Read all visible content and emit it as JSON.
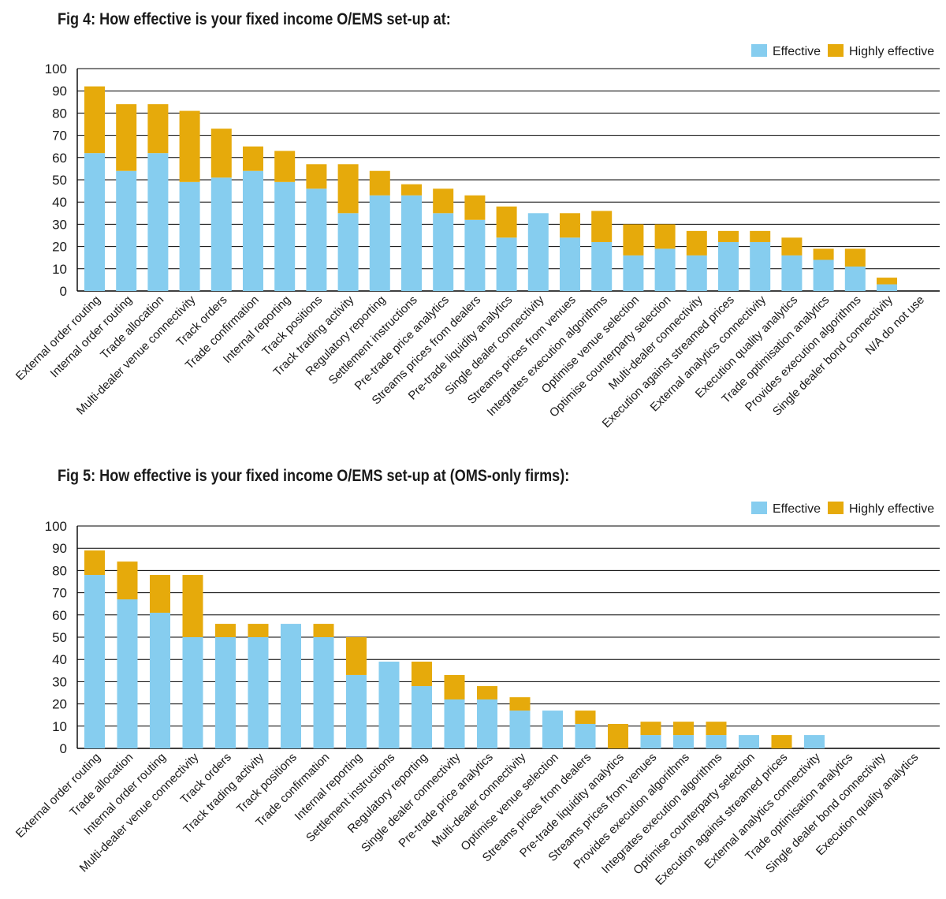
{
  "colors": {
    "effective": "#86cdef",
    "highly_effective": "#e6aa0b",
    "grid": "#000000",
    "axis": "#000000"
  },
  "chart_data": [
    {
      "type": "bar",
      "stacked": true,
      "title": "Fig 4: How effective is your fixed income O/EMS set-up at:",
      "legend": {
        "position": "top-right",
        "entries": [
          "Effective",
          "Highly effective"
        ]
      },
      "ylim": [
        0,
        100
      ],
      "yticks": [
        0,
        10,
        20,
        30,
        40,
        50,
        60,
        70,
        80,
        90,
        100
      ],
      "grid": true,
      "categories": [
        "External order routing",
        "Internal order routing",
        "Trade allocation",
        "Multi-dealer venue connectivity",
        "Track orders",
        "Trade confirmation",
        "Internal reporting",
        "Track positions",
        "Track trading activity",
        "Regulatory reporting",
        "Settlement instructions",
        "Pre-trade price analytics",
        "Streams prices from dealers",
        "Pre-trade liquidity analytics",
        "Single dealer connectivity",
        "Streams prices from venues",
        "Integrates execution algorithms",
        "Optimise venue selection",
        "Optimise counterparty selection",
        "Multi-dealer connectivity",
        "Execution against streamed prices",
        "External analytics connectivity",
        "Execution quality analytics",
        "Trade optimisation analytics",
        "Provides execution algorithms",
        "Single dealer bond connectivity",
        "N/A do not use"
      ],
      "series": [
        {
          "name": "Effective",
          "values": [
            62,
            54,
            62,
            49,
            51,
            54,
            49,
            46,
            35,
            43,
            43,
            35,
            32,
            24,
            35,
            24,
            22,
            16,
            19,
            16,
            22,
            22,
            16,
            14,
            11,
            3,
            0
          ]
        },
        {
          "name": "Highly effective",
          "values": [
            30,
            30,
            22,
            32,
            22,
            11,
            14,
            11,
            22,
            11,
            5,
            11,
            11,
            14,
            0,
            11,
            14,
            14,
            11,
            11,
            5,
            5,
            8,
            5,
            8,
            3,
            0
          ]
        }
      ]
    },
    {
      "type": "bar",
      "stacked": true,
      "title": "Fig 5: How effective is your fixed income O/EMS set-up at (OMS-only firms):",
      "legend": {
        "position": "top-right",
        "entries": [
          "Effective",
          "Highly effective"
        ]
      },
      "ylim": [
        0,
        100
      ],
      "yticks": [
        0,
        10,
        20,
        30,
        40,
        50,
        60,
        70,
        80,
        90,
        100
      ],
      "grid": true,
      "categories": [
        "External order routing",
        "Trade allocation",
        "Internal order routing",
        "Multi-dealer venue connectivity",
        "Track orders",
        "Track trading activity",
        "Track positions",
        "Trade confirmation",
        "Internal reporting",
        "Settlement instructions",
        "Regulatory reporting",
        "Single dealer connectivity",
        "Pre-trade price analytics",
        "Multi-dealer connectivity",
        "Optimise venue selection",
        "Streams prices from dealers",
        "Pre-trade liquidity analytics",
        "Streams prices from venues",
        "Provides execution algorithms",
        "Integrates execution algorithms",
        "Optimise counterparty selection",
        "Execution against streamed prices",
        "External analytics connectivity",
        "Trade optimisation analytics",
        "Single dealer bond connectivity",
        "Execution quality analytics"
      ],
      "series": [
        {
          "name": "Effective",
          "values": [
            78,
            67,
            61,
            50,
            50,
            50,
            56,
            50,
            33,
            39,
            28,
            22,
            22,
            17,
            17,
            11,
            0,
            6,
            6,
            6,
            6,
            0,
            6,
            0,
            0,
            0
          ]
        },
        {
          "name": "Highly effective",
          "values": [
            11,
            17,
            17,
            28,
            6,
            6,
            0,
            6,
            17,
            0,
            11,
            11,
            6,
            6,
            0,
            6,
            11,
            6,
            6,
            6,
            0,
            6,
            0,
            0,
            0,
            0
          ]
        }
      ]
    }
  ]
}
